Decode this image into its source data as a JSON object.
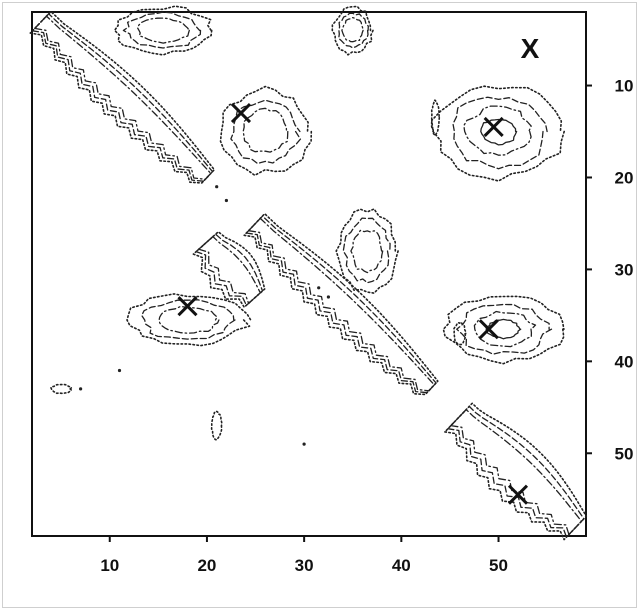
{
  "chart_data": {
    "type": "heatmap",
    "title": "",
    "xlabel": "",
    "ylabel": "",
    "corner_label": "X",
    "xlim": [
      2,
      59
    ],
    "ylim": [
      2,
      59
    ],
    "x_ticks": [
      10,
      20,
      30,
      40,
      50
    ],
    "y_ticks": [
      10,
      20,
      30,
      40,
      50
    ],
    "y_axis_side": "right",
    "y_inverted": true,
    "grid": false,
    "legend": "none",
    "contour_styles": [
      "dotted",
      "dashed",
      "dash-dot",
      "solid"
    ],
    "markers": [
      {
        "symbol": "X",
        "x": 23.5,
        "y": 13
      },
      {
        "symbol": "X",
        "x": 49.5,
        "y": 14.5
      },
      {
        "symbol": "X",
        "x": 18,
        "y": 34
      },
      {
        "symbol": "X",
        "x": 49,
        "y": 36.5
      },
      {
        "symbol": "X",
        "x": 52,
        "y": 54.5
      }
    ],
    "contour_regions": [
      {
        "kind": "blob",
        "cx": 15.5,
        "cy": 4,
        "rx": 5,
        "ry": 2.5,
        "levels": 3
      },
      {
        "kind": "blob",
        "cx": 35,
        "cy": 4,
        "rx": 2,
        "ry": 2.5,
        "levels": 3
      },
      {
        "kind": "blob",
        "cx": 26,
        "cy": 15,
        "rx": 4.5,
        "ry": 4.5,
        "levels": 3
      },
      {
        "kind": "blob",
        "cx": 50,
        "cy": 15,
        "rx": 6.5,
        "ry": 5,
        "levels": 4
      },
      {
        "kind": "blob",
        "cx": 36.5,
        "cy": 28,
        "rx": 3,
        "ry": 4.5,
        "levels": 3
      },
      {
        "kind": "blob",
        "cx": 18,
        "cy": 35.5,
        "rx": 6,
        "ry": 2.8,
        "levels": 3
      },
      {
        "kind": "blob",
        "cx": 50.5,
        "cy": 36.5,
        "rx": 6,
        "ry": 3.5,
        "levels": 4
      },
      {
        "kind": "blob",
        "cx": 21,
        "cy": 47,
        "rx": 0.5,
        "ry": 1.5,
        "levels": 1
      },
      {
        "kind": "blob",
        "cx": 43.5,
        "cy": 13.5,
        "rx": 0.4,
        "ry": 1.8,
        "levels": 1
      },
      {
        "kind": "blob",
        "cx": 46,
        "cy": 37,
        "rx": 0.6,
        "ry": 1.2,
        "levels": 1
      },
      {
        "kind": "blob",
        "cx": 5,
        "cy": 43,
        "rx": 1,
        "ry": 0.5,
        "levels": 1
      },
      {
        "kind": "band",
        "x1": 3,
        "y1": 3,
        "x2": 20,
        "y2": 20,
        "width": 2.2,
        "levels": 3
      },
      {
        "kind": "band",
        "x1": 25,
        "y1": 25,
        "x2": 43,
        "y2": 43,
        "width": 2.2,
        "levels": 3
      },
      {
        "kind": "band",
        "x1": 46,
        "y1": 46,
        "x2": 58,
        "y2": 58,
        "width": 3.0,
        "levels": 3
      },
      {
        "kind": "band",
        "x1": 20,
        "y1": 27,
        "x2": 25,
        "y2": 33,
        "width": 2.5,
        "levels": 3
      }
    ]
  }
}
